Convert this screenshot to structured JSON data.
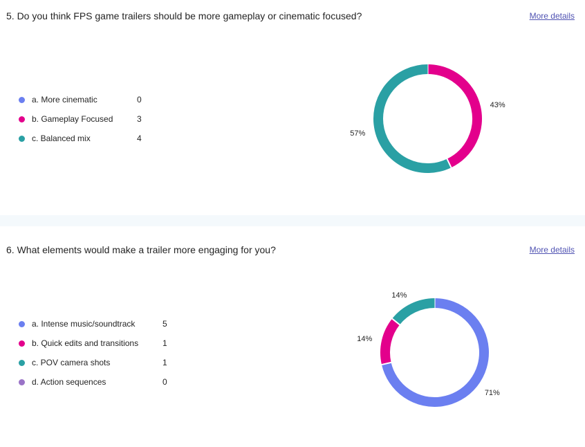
{
  "questions": [
    {
      "title": "5. Do you think FPS game trailers should be more gameplay or cinematic focused?",
      "more_details": "More details",
      "options": [
        {
          "label": "a. More cinematic",
          "count": "0",
          "color": "#6b7ff0"
        },
        {
          "label": "b. Gameplay Focused",
          "count": "3",
          "color": "#e3008c"
        },
        {
          "label": "c. Balanced mix",
          "count": "4",
          "color": "#2aa0a4"
        }
      ]
    },
    {
      "title": "6. What elements would make a trailer more engaging for you?",
      "more_details": "More details",
      "options": [
        {
          "label": "a. Intense music/soundtrack",
          "count": "5",
          "color": "#6b7ff0"
        },
        {
          "label": "b. Quick edits and transitions",
          "count": "1",
          "color": "#e3008c"
        },
        {
          "label": "c. POV camera shots",
          "count": "1",
          "color": "#2aa0a4"
        },
        {
          "label": "d. Action sequences",
          "count": "0",
          "color": "#9a73c7"
        }
      ]
    }
  ],
  "chart_data": [
    {
      "type": "pie",
      "categories": [
        "a. More cinematic",
        "b. Gameplay Focused",
        "c. Balanced mix"
      ],
      "values": [
        0,
        3,
        4
      ],
      "data_labels": [
        "",
        "43%",
        "57%"
      ]
    },
    {
      "type": "pie",
      "categories": [
        "a. Intense music/soundtrack",
        "b. Quick edits and transitions",
        "c. POV camera shots",
        "d. Action sequences"
      ],
      "values": [
        5,
        1,
        1,
        0
      ],
      "data_labels": [
        "71%",
        "14%",
        "14%",
        ""
      ]
    }
  ]
}
